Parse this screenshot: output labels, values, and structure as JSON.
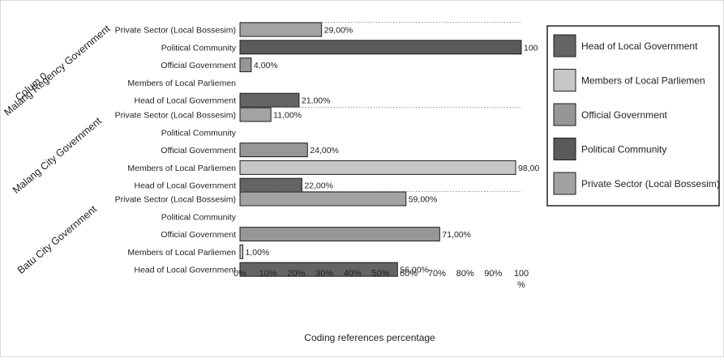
{
  "chart_data": {
    "type": "bar",
    "orientation": "horizontal",
    "xlabel": "Coding references percentage",
    "x_unit": "%",
    "xlim": [
      0,
      100
    ],
    "x_ticks": [
      "0%",
      "10%",
      "20%",
      "30%",
      "40%",
      "50%",
      "60%",
      "70%",
      "80%",
      "90%",
      "100"
    ],
    "grid": false,
    "legend_position": "right",
    "series": [
      {
        "name": "Head of Local Government",
        "color": "#646464"
      },
      {
        "name": "Members of Local Parliemen",
        "color": "#c6c6c6"
      },
      {
        "name": "Official Government",
        "color": "#969696"
      },
      {
        "name": "Political Community",
        "color": "#5a5a5a"
      },
      {
        "name": "Private Sector (Local Bossesim)",
        "color": "#a2a2a2"
      }
    ],
    "groups": [
      {
        "name": "Malang Regency Government",
        "overlap_label": "Colum 0",
        "bars": [
          {
            "category": "Private Sector (Local Bossesim)",
            "series": 4,
            "value": 29,
            "label": "29,00%"
          },
          {
            "category": "Political Community",
            "series": 3,
            "value": 100,
            "label": "100"
          },
          {
            "category": "Official Government",
            "series": 2,
            "value": 4,
            "label": "4,00%"
          },
          {
            "category": "Members of Local Parliemen",
            "series": 1,
            "value": null,
            "label": ""
          },
          {
            "category": "Head of Local Government",
            "series": 0,
            "value": 21,
            "label": "21,00%"
          }
        ]
      },
      {
        "name": "Malang City Government",
        "bars": [
          {
            "category": "Private Sector (Local Bossesim)",
            "series": 4,
            "value": 11,
            "label": "11,00%"
          },
          {
            "category": "Political Community",
            "series": 3,
            "value": null,
            "label": ""
          },
          {
            "category": "Official Government",
            "series": 2,
            "value": 24,
            "label": "24,00%"
          },
          {
            "category": "Members of Local Parliemen",
            "series": 1,
            "value": 98,
            "label": "98,00"
          },
          {
            "category": "Head of Local Government",
            "series": 0,
            "value": 22,
            "label": "22,00%"
          }
        ]
      },
      {
        "name": "Batu City Government",
        "bars": [
          {
            "category": "Private Sector (Local Bossesim)",
            "series": 4,
            "value": 59,
            "label": "59,00%"
          },
          {
            "category": "Political Community",
            "series": 3,
            "value": null,
            "label": ""
          },
          {
            "category": "Official Government",
            "series": 2,
            "value": 71,
            "label": "71,00%"
          },
          {
            "category": "Members of Local Parliemen",
            "series": 1,
            "value": 1,
            "label": "1,00%"
          },
          {
            "category": "Head of Local Government",
            "series": 0,
            "value": 56,
            "label": "56,00%"
          }
        ]
      }
    ]
  }
}
